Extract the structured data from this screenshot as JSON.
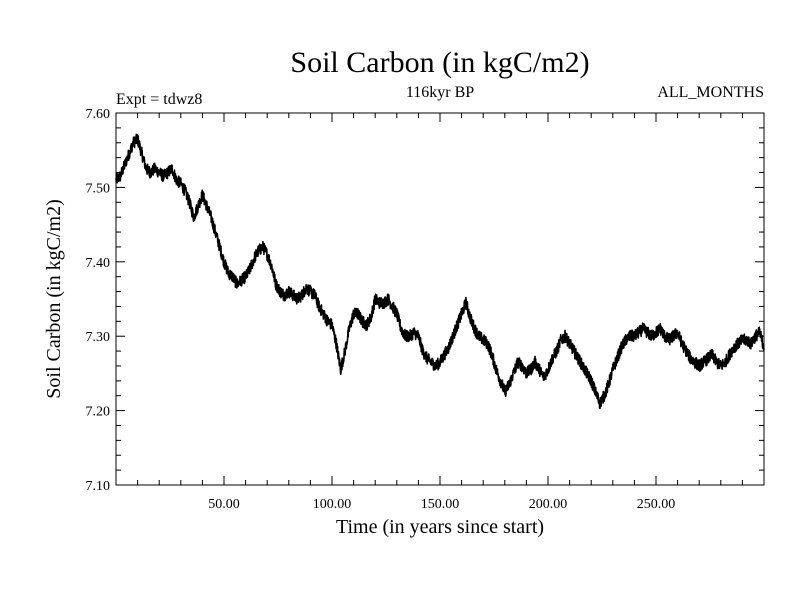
{
  "chart_data": {
    "type": "line",
    "title": "Soil Carbon (in kgC/m2)",
    "subtitle": "116kyr BP",
    "annotation_left": "Expt = tdwz8",
    "annotation_right": "ALL_MONTHS",
    "xlabel": "Time (in years since start)",
    "ylabel": "Soil Carbon (in kgC/m2)",
    "xlim": [
      0,
      300
    ],
    "ylim": [
      7.1,
      7.6
    ],
    "x_ticks": [
      50,
      100,
      150,
      200,
      250
    ],
    "x_tick_labels": [
      "50.00",
      "100.00",
      "150.00",
      "200.00",
      "250.00"
    ],
    "y_ticks": [
      7.1,
      7.2,
      7.3,
      7.4,
      7.5,
      7.6
    ],
    "y_tick_labels": [
      "7.10",
      "7.20",
      "7.30",
      "7.40",
      "7.50",
      "7.60"
    ],
    "grid": false,
    "series": [
      {
        "name": "Soil Carbon",
        "color": "#000000",
        "x": [
          0,
          2,
          4,
          6,
          8,
          10,
          12,
          14,
          16,
          18,
          20,
          22,
          24,
          26,
          28,
          30,
          32,
          34,
          36,
          38,
          40,
          42,
          44,
          46,
          48,
          50,
          52,
          54,
          56,
          58,
          60,
          62,
          64,
          66,
          68,
          70,
          72,
          74,
          76,
          78,
          80,
          82,
          84,
          86,
          88,
          90,
          92,
          94,
          96,
          98,
          100,
          102,
          104,
          106,
          108,
          110,
          112,
          114,
          116,
          118,
          120,
          122,
          124,
          126,
          128,
          130,
          132,
          134,
          136,
          138,
          140,
          142,
          144,
          146,
          148,
          150,
          152,
          154,
          156,
          158,
          160,
          162,
          164,
          166,
          168,
          170,
          172,
          174,
          176,
          178,
          180,
          182,
          184,
          186,
          188,
          190,
          192,
          194,
          196,
          198,
          200,
          202,
          204,
          206,
          208,
          210,
          212,
          214,
          216,
          218,
          220,
          222,
          224,
          226,
          228,
          230,
          232,
          234,
          236,
          238,
          240,
          242,
          244,
          246,
          248,
          250,
          252,
          254,
          256,
          258,
          260,
          262,
          264,
          266,
          268,
          270,
          272,
          274,
          276,
          278,
          280,
          282,
          284,
          286,
          288,
          290,
          292,
          294,
          296,
          298,
          300
        ],
        "values": [
          7.51,
          7.515,
          7.53,
          7.545,
          7.56,
          7.565,
          7.545,
          7.525,
          7.52,
          7.525,
          7.52,
          7.515,
          7.52,
          7.525,
          7.51,
          7.505,
          7.495,
          7.48,
          7.46,
          7.475,
          7.49,
          7.475,
          7.46,
          7.44,
          7.42,
          7.4,
          7.385,
          7.38,
          7.37,
          7.375,
          7.38,
          7.39,
          7.405,
          7.415,
          7.42,
          7.41,
          7.395,
          7.37,
          7.36,
          7.355,
          7.36,
          7.355,
          7.35,
          7.355,
          7.365,
          7.36,
          7.355,
          7.34,
          7.33,
          7.32,
          7.315,
          7.29,
          7.255,
          7.28,
          7.31,
          7.33,
          7.33,
          7.32,
          7.315,
          7.325,
          7.35,
          7.345,
          7.345,
          7.35,
          7.34,
          7.33,
          7.31,
          7.3,
          7.3,
          7.305,
          7.3,
          7.28,
          7.27,
          7.265,
          7.26,
          7.265,
          7.275,
          7.285,
          7.3,
          7.315,
          7.33,
          7.345,
          7.325,
          7.31,
          7.3,
          7.295,
          7.29,
          7.275,
          7.255,
          7.24,
          7.225,
          7.235,
          7.25,
          7.265,
          7.26,
          7.25,
          7.255,
          7.265,
          7.255,
          7.245,
          7.255,
          7.27,
          7.28,
          7.295,
          7.3,
          7.29,
          7.28,
          7.27,
          7.26,
          7.25,
          7.24,
          7.225,
          7.21,
          7.22,
          7.235,
          7.255,
          7.27,
          7.285,
          7.295,
          7.3,
          7.3,
          7.305,
          7.31,
          7.305,
          7.3,
          7.305,
          7.31,
          7.3,
          7.295,
          7.3,
          7.305,
          7.29,
          7.28,
          7.27,
          7.265,
          7.26,
          7.265,
          7.27,
          7.275,
          7.265,
          7.26,
          7.265,
          7.275,
          7.285,
          7.29,
          7.295,
          7.295,
          7.29,
          7.3,
          7.305,
          7.285
        ]
      }
    ]
  }
}
